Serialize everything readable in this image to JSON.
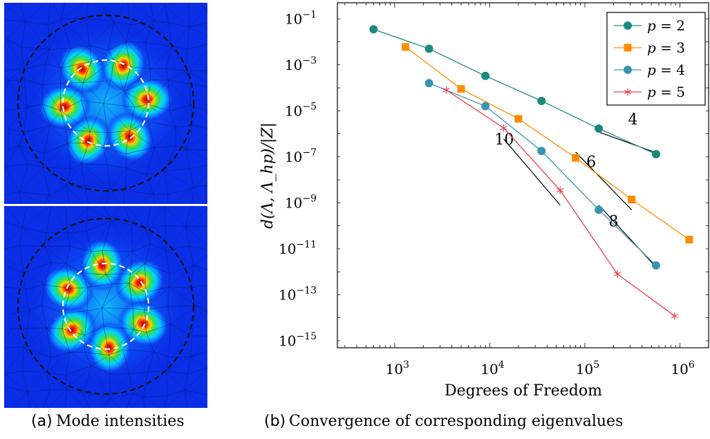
{
  "panel_a": {
    "caption_tag": "(a)",
    "caption_text": "Mode intensities"
  },
  "panel_b": {
    "caption_tag": "(b)",
    "caption_text": "Convergence of corresponding eigenvalues"
  },
  "colors": {
    "p2": "#1a8a80",
    "p3": "#ff8c00",
    "p4": "#3a94b0",
    "p5": "#e8404a",
    "heat_background": "#0a2ee6"
  },
  "chart_data": {
    "type": "line",
    "xscale": "log",
    "yscale": "log",
    "xlabel": "Degrees of Freedom",
    "ylabel": "d(Λ, Λ_hp)/|Z|",
    "xlim": [
      250,
      2000000
    ],
    "ylim": [
      5e-16,
      0.5
    ],
    "x_tick_labels": [
      "10^3",
      "10^4",
      "10^5",
      "10^6"
    ],
    "y_tick_labels": [
      "10^-1",
      "10^-3",
      "10^-5",
      "10^-7",
      "10^-9",
      "10^-11",
      "10^-13",
      "10^-15"
    ],
    "legend_position": "top-right",
    "series": [
      {
        "name": "p = 2",
        "key": "p2",
        "marker": "circle",
        "x": [
          600,
          2300,
          9000,
          35000,
          140000,
          560000
        ],
        "y": [
          0.035,
          0.005,
          0.00033,
          2.7e-05,
          1.7e-06,
          1.3e-07
        ]
      },
      {
        "name": "p = 3",
        "key": "p3",
        "marker": "square",
        "x": [
          1300,
          5000,
          20000,
          80000,
          310000,
          1250000
        ],
        "y": [
          0.006,
          9e-05,
          4.5e-06,
          9e-08,
          1.4e-09,
          2.5e-11
        ]
      },
      {
        "name": "p = 4",
        "key": "p4",
        "marker": "circle",
        "x": [
          2300,
          9000,
          35000,
          140000,
          560000
        ],
        "y": [
          0.00016,
          1.6e-05,
          1.8e-07,
          5e-10,
          1.9e-12
        ]
      },
      {
        "name": "p = 5",
        "key": "p5",
        "marker": "star",
        "x": [
          3500,
          14000,
          55000,
          220000,
          880000
        ],
        "y": [
          8e-05,
          1.8e-06,
          3.5e-09,
          8e-13,
          1.2e-14
        ]
      }
    ],
    "slope_annotations": [
      {
        "label": "4",
        "x": [
          140000,
          560000
        ],
        "y": [
          1.2e-06,
          1.5e-07
        ]
      },
      {
        "label": "6",
        "x": [
          80000,
          310000
        ],
        "y": [
          1.6e-07,
          5e-10
        ]
      },
      {
        "label": "8",
        "x": [
          140000,
          560000
        ],
        "y": [
          8e-10,
          1.6e-12
        ]
      },
      {
        "label": "10",
        "x": [
          14000,
          55000
        ],
        "y": [
          6e-07,
          8e-10
        ]
      }
    ]
  }
}
